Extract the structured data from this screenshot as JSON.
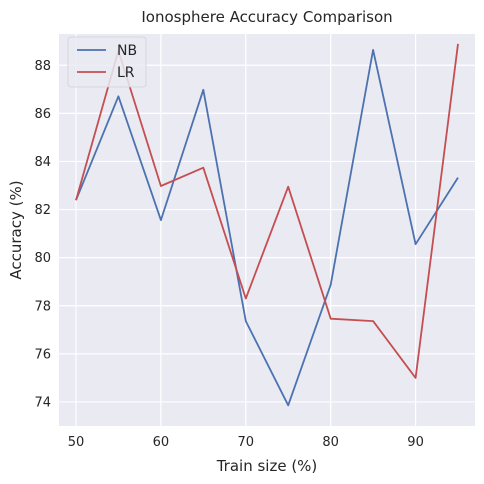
{
  "chart_data": {
    "type": "line",
    "title": "Ionosphere Accuracy Comparison",
    "xlabel": "Train size (%)",
    "ylabel": "Accuracy (%)",
    "x": [
      50,
      55,
      60,
      65,
      70,
      75,
      80,
      85,
      90,
      95
    ],
    "xlim": [
      48,
      97
    ],
    "ylim": [
      73.0,
      89.3
    ],
    "xticks": [
      50,
      60,
      70,
      80,
      90
    ],
    "yticks": [
      74,
      76,
      78,
      80,
      82,
      84,
      86,
      88
    ],
    "grid": true,
    "legend_position": "top-left",
    "series": [
      {
        "name": "NB",
        "color": "#4c72b0",
        "values": [
          82.39,
          86.71,
          81.56,
          86.98,
          77.36,
          73.86,
          78.87,
          88.64,
          80.56,
          83.33
        ]
      },
      {
        "name": "LR",
        "color": "#c44e52",
        "values": [
          82.39,
          88.61,
          82.98,
          83.74,
          78.3,
          82.95,
          77.46,
          77.36,
          75.0,
          88.89
        ]
      }
    ],
    "background_color": "#eaeaf2",
    "grid_color": "#ffffff"
  }
}
